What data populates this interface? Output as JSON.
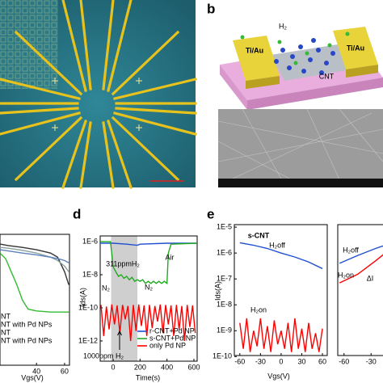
{
  "panel_labels": [
    "b",
    "d",
    "e"
  ],
  "schematic": {
    "gas": "H₂",
    "electrode_left": "Ti/Au",
    "electrode_right": "Ti/Au",
    "tube": "CNT"
  },
  "chart_data": [
    {
      "type": "line",
      "yscale": "log",
      "xlabel": "Vgs(V)",
      "xlim": [
        14,
        63.5
      ],
      "ylim": [
        1e-12,
        1e-05
      ],
      "xticks": [
        40,
        60
      ],
      "yticks": [],
      "legend": "lower left",
      "series": [
        {
          "name": "NT",
          "color": "#333333",
          "x": [
            14,
            20,
            30,
            40,
            50,
            55,
            60,
            63
          ],
          "values": [
            3e-06,
            2.5e-06,
            2e-06,
            1.5e-06,
            1e-06,
            6e-07,
            1e-07,
            2e-08
          ]
        },
        {
          "name": "NT with Pd NPs",
          "color": "#8aa0a0",
          "x": [
            14,
            20,
            30,
            40,
            50,
            55,
            60,
            63
          ],
          "values": [
            2e-06,
            1.8e-06,
            1.4e-06,
            1e-06,
            6e-07,
            4e-07,
            2e-07,
            1e-07
          ]
        },
        {
          "name": "NT",
          "color": "#33bb33",
          "x": [
            14,
            18,
            22,
            26,
            30,
            34,
            40,
            50,
            60,
            63
          ],
          "values": [
            1e-06,
            5e-07,
            1e-07,
            2e-08,
            3e-09,
            1e-09,
            8e-10,
            7e-10,
            7e-10,
            7e-10
          ]
        },
        {
          "name": "NT with Pd NPs",
          "color": "#5b7fbf",
          "x": [
            14,
            20,
            30,
            40,
            50,
            55,
            60,
            63
          ],
          "values": [
            1.5e-06,
            1.3e-06,
            1e-06,
            8e-07,
            6e-07,
            5e-07,
            4e-07,
            3e-07
          ]
        }
      ]
    },
    {
      "type": "line",
      "yscale": "log",
      "xlabel": "Time(s)",
      "ylabel": "Ids(A)",
      "xlim": [
        -96,
        624
      ],
      "ylim": [
        6e-14,
        2.2e-06
      ],
      "xticks": [
        0,
        200,
        400,
        600
      ],
      "yticks": [
        {
          "value": 1e-06,
          "label": "1E-6"
        },
        {
          "value": 1e-08,
          "label": "1E-8"
        },
        {
          "value": 1e-10,
          "label": "1E-10"
        },
        {
          "value": 1e-12,
          "label": "1E-12"
        }
      ],
      "shade": [
        -15,
        180
      ],
      "legend": "lower right",
      "annotations": [
        "311ppmH₂",
        "N₂",
        "N₂",
        "Air",
        "1000ppm H₂"
      ],
      "series": [
        {
          "name": "r-CNT+Pd NP",
          "color": "#2050d0",
          "x": [
            -96,
            0,
            100,
            180,
            200,
            400,
            624
          ],
          "values": [
            8e-07,
            8e-07,
            7e-07,
            6e-07,
            7e-07,
            8e-07,
            8e-07
          ]
        },
        {
          "name": "s-CNT+Pd NP",
          "color": "#22aa22",
          "x": [
            -96,
            -20,
            -10,
            0,
            20,
            40,
            60,
            80,
            100,
            120,
            140,
            160,
            180,
            200,
            220,
            240,
            260,
            280,
            300,
            320,
            340,
            360,
            380,
            400,
            410,
            430,
            624
          ],
          "values": [
            1e-06,
            1e-06,
            2e-07,
            3e-08,
            1.5e-08,
            8e-09,
            1e-08,
            6e-09,
            8e-09,
            5e-09,
            7e-09,
            4e-09,
            5e-09,
            4e-09,
            5e-09,
            3e-09,
            4e-09,
            3e-09,
            4e-09,
            3e-09,
            4e-09,
            3e-09,
            4e-09,
            3e-09,
            2e-07,
            7e-07,
            8e-07
          ]
        },
        {
          "name": "only Pd NP",
          "color": "#ff0000",
          "x": [
            -90,
            -70,
            -50,
            -30,
            -10,
            10,
            30,
            50,
            70,
            90,
            110,
            130,
            150,
            170,
            190,
            210,
            230,
            250,
            270,
            290,
            310,
            330,
            350,
            370,
            390,
            410,
            430,
            450,
            470,
            490,
            510,
            530,
            550,
            570,
            590,
            610
          ],
          "values": [
            1.5e-10,
            2e-12,
            1.2e-10,
            5e-12,
            1.6e-10,
            1e-11,
            1.4e-10,
            3e-12,
            1.5e-10,
            2e-11,
            1.3e-10,
            1e-12,
            1.5e-10,
            4e-12,
            1.6e-10,
            8e-12,
            1.4e-10,
            2e-12,
            1.5e-10,
            6e-12,
            1.3e-10,
            1.5e-11,
            1.6e-10,
            3e-12,
            1.5e-10,
            1e-11,
            1.4e-10,
            2e-12,
            1.5e-10,
            5e-12,
            1.3e-10,
            1e-12,
            1.5e-10,
            7e-12,
            1.4e-10,
            3e-12
          ]
        }
      ]
    },
    {
      "type": "line",
      "yscale": "log",
      "title": "s-CNT",
      "xlabel": "Vgs(V)",
      "ylabel": "Ids(A)",
      "xlim": [
        -68,
        67
      ],
      "ylim": [
        1.1e-10,
        1.25e-05
      ],
      "xticks": [
        -60,
        -30,
        0,
        30,
        60
      ],
      "yticks": [
        {
          "value": 1e-05,
          "label": "1E-5"
        },
        {
          "value": 1e-06,
          "label": "1E-6"
        },
        {
          "value": 1e-07,
          "label": "1E-7"
        },
        {
          "value": 1e-08,
          "label": "1E-8"
        },
        {
          "value": 1e-09,
          "label": "1E-9"
        },
        {
          "value": 1e-10,
          "label": "1E-10"
        }
      ],
      "annotations": [
        "H₂off",
        "H₂on"
      ],
      "series": [
        {
          "color": "#2050d0",
          "x": [
            -60,
            -40,
            -20,
            0,
            20,
            40,
            60
          ],
          "values": [
            2.5e-06,
            2e-06,
            1.5e-06,
            1e-06,
            7e-07,
            4.5e-07,
            2.5e-07
          ]
        },
        {
          "color": "#ff0000",
          "x": [
            -60,
            -55,
            -50,
            -45,
            -40,
            -35,
            -30,
            -25,
            -20,
            -15,
            -10,
            -5,
            0,
            5,
            10,
            15,
            20,
            25,
            30,
            35,
            40,
            45,
            50,
            55,
            60
          ],
          "values": [
            2e-09,
            2e-10,
            3e-09,
            1.5e-10,
            1e-09,
            2.5e-10,
            3e-09,
            2e-10,
            1.5e-09,
            1.5e-10,
            2.5e-09,
            3e-10,
            1e-09,
            2e-10,
            2e-09,
            1.5e-10,
            3e-09,
            2e-10,
            1.2e-09,
            1.5e-10,
            2e-09,
            2e-10,
            8e-10,
            1.5e-10,
            1.2e-09
          ]
        }
      ]
    },
    {
      "type": "line",
      "yscale": "log",
      "xlim": [
        -67,
        -2.4
      ],
      "ylim": [
        1.1e-10,
        1.25e-05
      ],
      "xticks": [
        -60,
        -30
      ],
      "yticks": [],
      "annotations": [
        "H₂off",
        "H₂on",
        "ΔI"
      ],
      "series": [
        {
          "color": "#2050d0",
          "x": [
            -65,
            -45,
            -25,
            -5
          ],
          "values": [
            4e-07,
            8e-07,
            1.5e-06,
            2.6e-06
          ]
        },
        {
          "color": "#ff0000",
          "x": [
            -65,
            -45,
            -25,
            -5
          ],
          "values": [
            7e-08,
            1.5e-07,
            5e-07,
            1.8e-06
          ]
        }
      ]
    }
  ]
}
